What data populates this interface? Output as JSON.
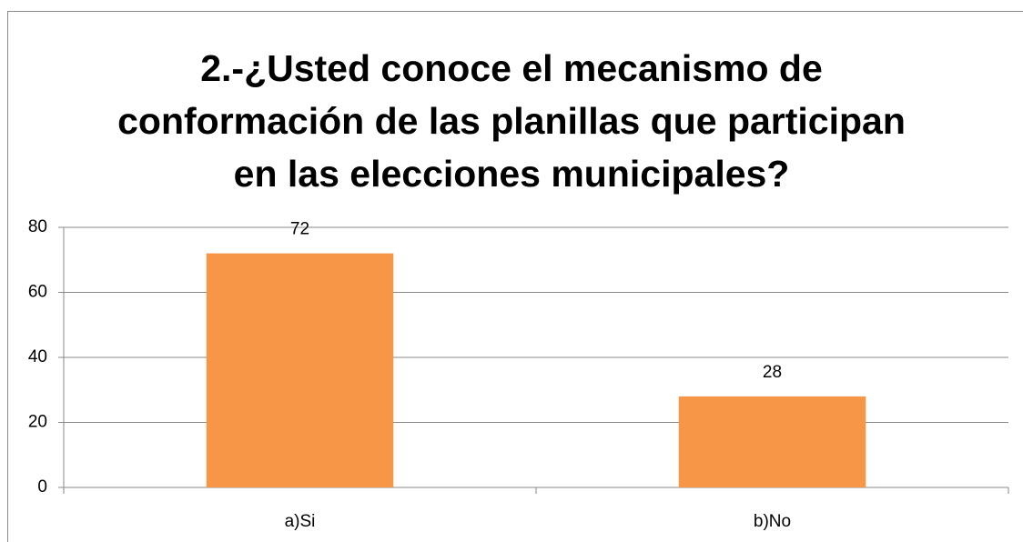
{
  "chart_data": {
    "type": "bar",
    "title": "2.-¿Usted conoce el mecanismo de conformación de las planillas que participan en las elecciones municipales?",
    "categories": [
      "a)Si",
      "b)No"
    ],
    "values": [
      72,
      28
    ],
    "color": "#f79646",
    "ylim": [
      0,
      80
    ],
    "yticks": [
      0,
      20,
      40,
      60,
      80
    ],
    "grid": true
  }
}
